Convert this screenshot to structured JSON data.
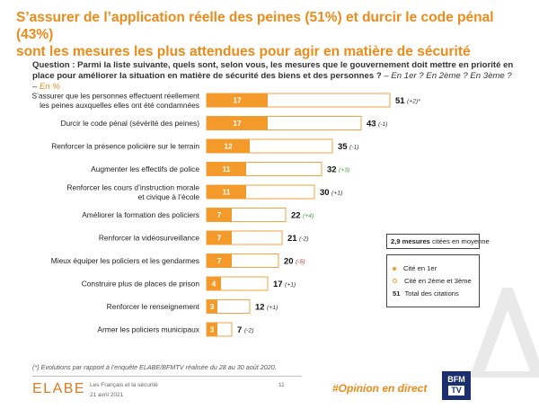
{
  "title_line1": "S’assurer de l’application réelle des peines (51%) et durcir le code pénal (43%)",
  "title_line2": "sont les mesures les plus attendues pour agir en matière de sécurité",
  "question": {
    "label": "Question :",
    "text": "Parmi la liste suivante, quels sont, selon vous, les mesures que le gouvernement doit mettre en priorité en place pour améliorer la situation en matière de sécurité des biens et des personnes ?",
    "suffix": "– En 1er ? En 2ème ? En 3ème ? –",
    "unit": "En %"
  },
  "chart_data": {
    "type": "bar",
    "orientation": "horizontal",
    "stacked": true,
    "categories": [
      "S’assurer que les personnes effectuent réellement les peines auxquelles elles ont été condamnées",
      "Durcir le code pénal (sévérité des peines)",
      "Renforcer la présence policière sur le terrain",
      "Augmenter les effectifs de police",
      "Renforcer les cours d’instruction morale et civique à l’école",
      "Améliorer la formation des policiers",
      "Renforcer la vidéosurveillance",
      "Mieux équiper les policiers et les gendarmes",
      "Construire plus de places de prison",
      "Renforcer le renseignement",
      "Armer les policiers municipaux"
    ],
    "label_lines": [
      [
        "S’assurer que les personnes effectuent réellement",
        "les peines auxquelles elles ont été condamnées"
      ],
      [
        "Durcir le code pénal (sévérité des peines)"
      ],
      [
        "Renforcer la présence policière sur le terrain"
      ],
      [
        "Augmenter les effectifs de police"
      ],
      [
        "Renforcer les cours d’instruction morale",
        "et civique à l’école"
      ],
      [
        "Améliorer la formation des policiers"
      ],
      [
        "Renforcer la vidéosurveillance"
      ],
      [
        "Mieux équiper les policiers et les gendarmes"
      ],
      [
        "Construire plus de places de prison"
      ],
      [
        "Renforcer le renseignement"
      ],
      [
        "Armer les policiers municipaux"
      ]
    ],
    "series": [
      {
        "name": "Cité en 1er",
        "values": [
          17,
          17,
          12,
          11,
          11,
          7,
          7,
          7,
          4,
          3,
          3
        ]
      },
      {
        "name": "Cité en 2ème et 3ème",
        "values": [
          34,
          26,
          23,
          21,
          19,
          15,
          14,
          13,
          13,
          9,
          4
        ]
      }
    ],
    "totals": [
      51,
      43,
      35,
      32,
      30,
      22,
      21,
      20,
      17,
      12,
      7
    ],
    "evolutions": [
      "(+2)*",
      "(-1)",
      "(-1)",
      "(+3)",
      "(+1)",
      "(+4)",
      "(-2)",
      "(-5)",
      "(+1)",
      "(+1)",
      "(-2)"
    ],
    "evolution_signs": [
      "neutral",
      "neutral",
      "neutral",
      "up",
      "neutral",
      "up",
      "neutral",
      "down",
      "neutral",
      "neutral",
      "neutral"
    ],
    "xlim": [
      0,
      60
    ],
    "colors": {
      "first": "#f39a2a",
      "other": "#ffffff",
      "outline": "#f39a2a",
      "up": "#3aa935",
      "down": "#d9262c",
      "neutral": "#333333"
    }
  },
  "legend": {
    "average_value": "2,9 mesures",
    "average_text": "citées en moyenne",
    "first_label": "Cité en 1er",
    "other_label": "Cité en 2ème et 3ème",
    "total_number": "51",
    "total_label": "Total des citations"
  },
  "footnote": "(*) Evolutions par rapport à l’enquête ELABE/BFMTV réalisée du 28 au 30 août 2020.",
  "footer": {
    "logo": "ELABE",
    "source_line1": "Les Français et la sécurité",
    "source_line2": "21 avril 2021",
    "page_number": "11",
    "hashtag": "#Opinion en direct",
    "bfm_line1": "BFM",
    "bfm_line2": "TV"
  }
}
